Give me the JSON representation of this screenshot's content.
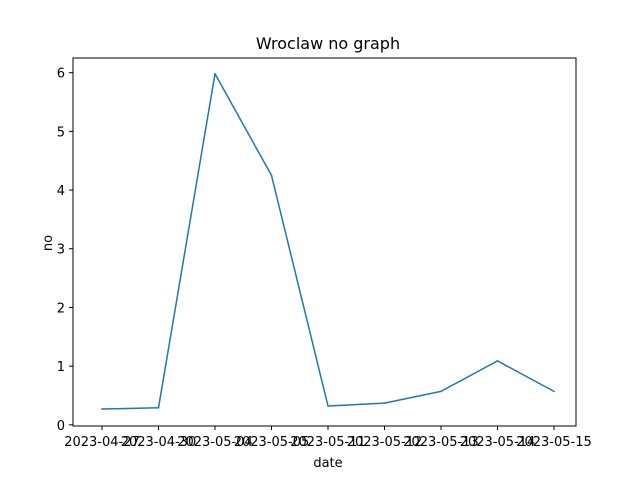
{
  "chart_data": {
    "type": "line",
    "title": "Wroclaw no graph",
    "xlabel": "date",
    "ylabel": "no",
    "x": [
      "2023-04-27",
      "2023-04-30",
      "2023-05-04",
      "2023-05-05",
      "2023-05-11",
      "2023-05-12",
      "2023-05-13",
      "2023-05-14",
      "2023-05-15"
    ],
    "y_ticks": [
      "0",
      "1",
      "2",
      "3",
      "4",
      "5",
      "6"
    ],
    "ylim": [
      -0.02,
      6.25
    ],
    "series": [
      {
        "values": [
          0.27,
          0.29,
          5.98,
          4.25,
          0.32,
          0.37,
          0.57,
          1.09,
          0.57
        ]
      }
    ],
    "grid": false,
    "colors": {
      "line": "#1f77b4",
      "axes": "#000000"
    }
  }
}
